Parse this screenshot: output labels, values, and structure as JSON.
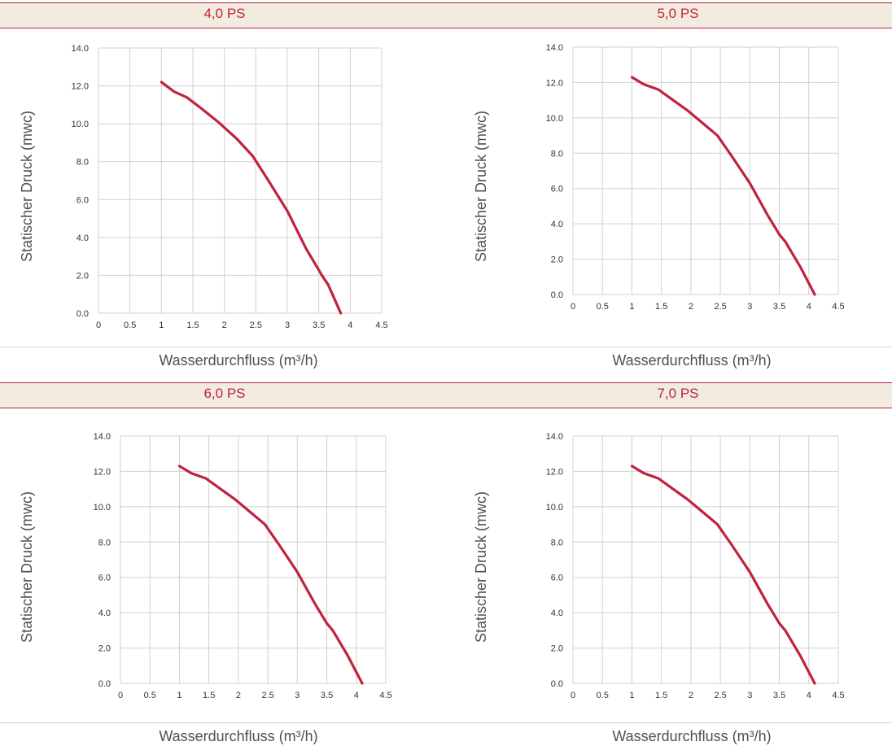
{
  "chart_data": [
    {
      "type": "line",
      "title": "4,0 PS",
      "xlabel": "Wasserdurchfluss (m³/h)",
      "ylabel": "Statischer Druck (mwc)",
      "xlim": [
        0,
        4.5
      ],
      "ylim": [
        0,
        14
      ],
      "x_ticks": [
        "0",
        "0.5",
        "1",
        "1.5",
        "2",
        "2.5",
        "3",
        "3.5",
        "4",
        "4.5"
      ],
      "y_ticks": [
        "0.0",
        "2.0",
        "4.0",
        "6.0",
        "8.0",
        "10.0",
        "12.0",
        "14.0"
      ],
      "grid": true,
      "series": [
        {
          "color": "#c0223e",
          "x": [
            1.0,
            1.2,
            1.4,
            1.6,
            1.9,
            2.2,
            2.45,
            2.7,
            3.0,
            3.3,
            3.55,
            3.65,
            3.85
          ],
          "y": [
            12.2,
            11.7,
            11.4,
            10.9,
            10.1,
            9.2,
            8.3,
            7.0,
            5.4,
            3.4,
            2.0,
            1.5,
            0.0
          ]
        }
      ]
    },
    {
      "type": "line",
      "title": "5,0 PS",
      "xlabel": "Wasserdurchfluss (m³/h)",
      "ylabel": "Statischer Druck (mwc)",
      "xlim": [
        0,
        4.5
      ],
      "ylim": [
        0,
        14
      ],
      "x_ticks": [
        "0",
        "0.5",
        "1",
        "1.5",
        "2",
        "2.5",
        "3",
        "3.5",
        "4",
        "4.5"
      ],
      "y_ticks": [
        "0.0",
        "2.0",
        "4.0",
        "6.0",
        "8.0",
        "10.0",
        "12.0",
        "14.0"
      ],
      "grid": true,
      "series": [
        {
          "color": "#c0223e",
          "x": [
            1.0,
            1.2,
            1.45,
            1.7,
            1.95,
            2.2,
            2.45,
            2.7,
            3.0,
            3.3,
            3.5,
            3.6,
            3.85,
            4.1
          ],
          "y": [
            12.3,
            11.9,
            11.6,
            11.0,
            10.4,
            9.7,
            9.0,
            7.8,
            6.3,
            4.5,
            3.4,
            3.0,
            1.6,
            0.0
          ]
        }
      ]
    },
    {
      "type": "line",
      "title": "6,0 PS",
      "xlabel": "Wasserdurchfluss (m³/h)",
      "ylabel": "Statischer Druck (mwc)",
      "xlim": [
        0,
        4.5
      ],
      "ylim": [
        0,
        14
      ],
      "x_ticks": [
        "0",
        "0.5",
        "1",
        "1.5",
        "2",
        "2.5",
        "3",
        "3.5",
        "4",
        "4.5"
      ],
      "y_ticks": [
        "0.0",
        "2.0",
        "4.0",
        "6.0",
        "8.0",
        "10.0",
        "12.0",
        "14.0"
      ],
      "grid": true,
      "series": [
        {
          "color": "#c0223e",
          "x": [
            1.0,
            1.2,
            1.45,
            1.7,
            1.95,
            2.2,
            2.45,
            2.7,
            3.0,
            3.3,
            3.5,
            3.6,
            3.85,
            4.1
          ],
          "y": [
            12.3,
            11.9,
            11.6,
            11.0,
            10.4,
            9.7,
            9.0,
            7.8,
            6.3,
            4.5,
            3.4,
            3.0,
            1.6,
            0.0
          ]
        }
      ]
    },
    {
      "type": "line",
      "title": "7,0 PS",
      "xlabel": "Wasserdurchfluss (m³/h)",
      "ylabel": "Statischer Druck (mwc)",
      "xlim": [
        0,
        4.5
      ],
      "ylim": [
        0,
        14
      ],
      "x_ticks": [
        "0",
        "0.5",
        "1",
        "1.5",
        "2",
        "2.5",
        "3",
        "3.5",
        "4",
        "4.5"
      ],
      "y_ticks": [
        "0.0",
        "2.0",
        "4.0",
        "6.0",
        "8.0",
        "10.0",
        "12.0",
        "14.0"
      ],
      "grid": true,
      "series": [
        {
          "color": "#c0223e",
          "x": [
            1.0,
            1.2,
            1.45,
            1.7,
            1.95,
            2.2,
            2.45,
            2.7,
            3.0,
            3.3,
            3.5,
            3.6,
            3.85,
            4.1
          ],
          "y": [
            12.3,
            11.9,
            11.6,
            11.0,
            10.4,
            9.7,
            9.0,
            7.8,
            6.3,
            4.5,
            3.4,
            3.0,
            1.6,
            0.0
          ]
        }
      ]
    }
  ]
}
